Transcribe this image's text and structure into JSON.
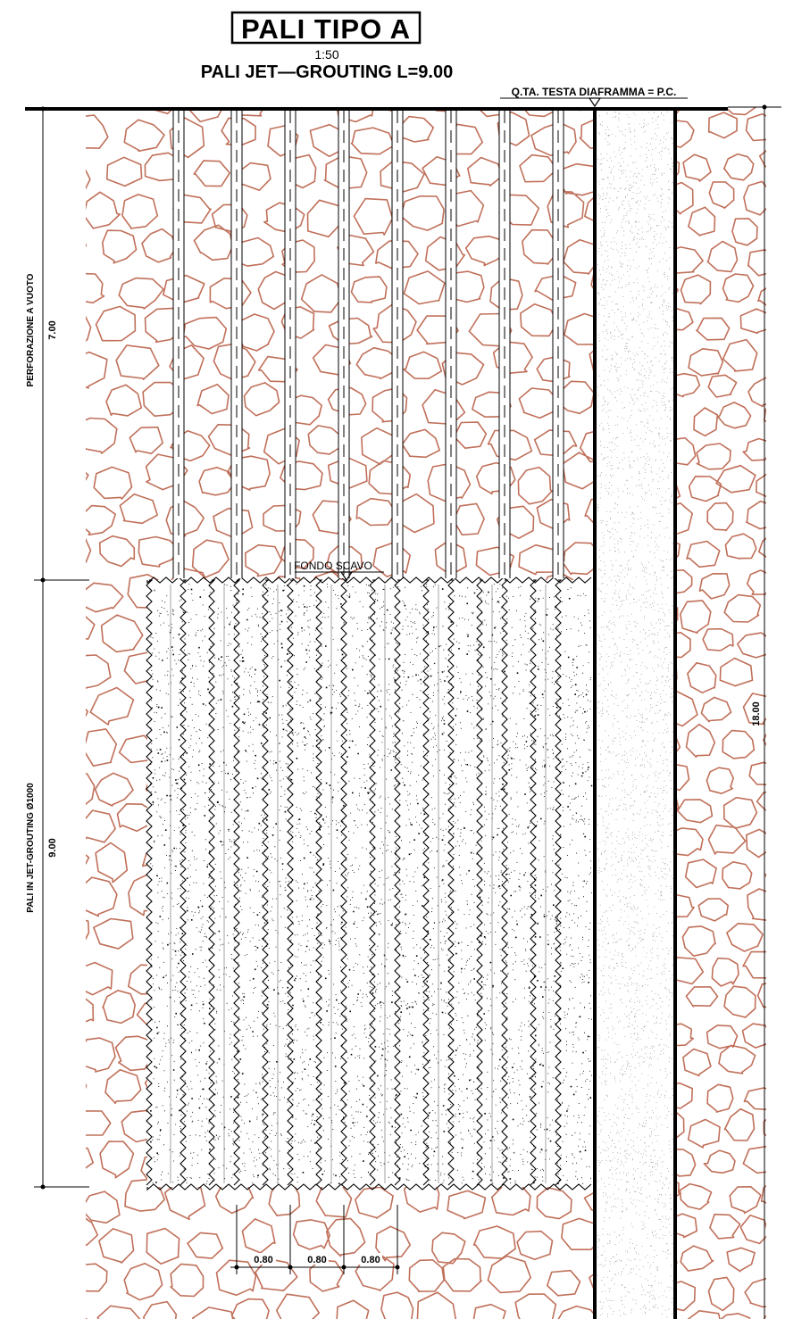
{
  "title": {
    "main": "PALI TIPO A",
    "scale": "1:50",
    "subtitle": "PALI JET—GROUTING L=9.00"
  },
  "labels": {
    "top_level": "Q.TA. TESTA DIAFRAMMA = P.C.",
    "excavation_bottom": "FONDO SCAVO"
  },
  "dimensions": {
    "empty_drilling_label": "PERFORAZIONE A VUOTO",
    "empty_drilling_value": "7.00",
    "jet_grouting_label": "PALI IN JET-GROUTING Ø1000",
    "jet_grouting_value": "9.00",
    "total_value": "18.00",
    "spacing": [
      "0.80",
      "0.80",
      "0.80"
    ]
  },
  "colors": {
    "soil": "#c0705a",
    "line": "#000000",
    "wall_fill": "#f2f2f2"
  }
}
